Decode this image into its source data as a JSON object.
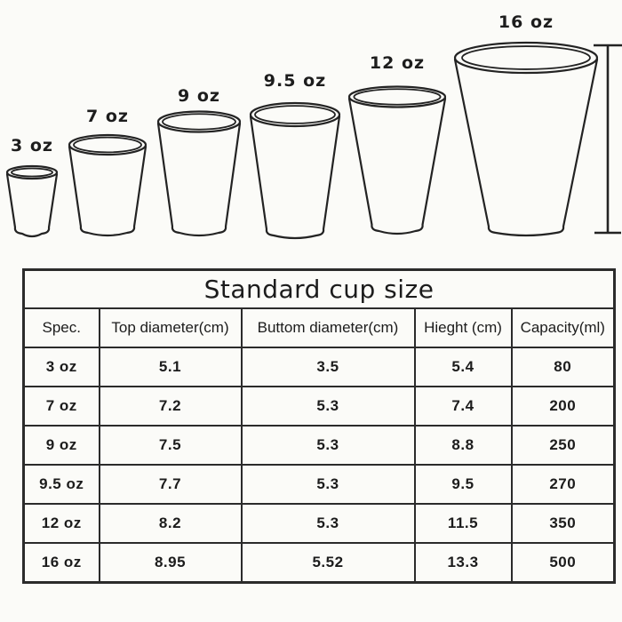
{
  "cups": [
    {
      "label": "3 oz"
    },
    {
      "label": "7 oz"
    },
    {
      "label": "9 oz"
    },
    {
      "label": "9.5 oz"
    },
    {
      "label": "12 oz"
    },
    {
      "label": "16 oz"
    }
  ],
  "table": {
    "title": "Standard cup size",
    "columns": [
      "Spec.",
      "Top diameter(cm)",
      "Buttom diameter(cm)",
      "Hieght (cm)",
      "Capacity(ml)"
    ],
    "rows": [
      [
        "3 oz",
        "5.1",
        "3.5",
        "5.4",
        "80"
      ],
      [
        "7 oz",
        "7.2",
        "5.3",
        "7.4",
        "200"
      ],
      [
        "9 oz",
        "7.5",
        "5.3",
        "8.8",
        "250"
      ],
      [
        "9.5 oz",
        "7.7",
        "5.3",
        "9.5",
        "270"
      ],
      [
        "12 oz",
        "8.2",
        "5.3",
        "11.5",
        "350"
      ],
      [
        "16 oz",
        "8.95",
        "5.52",
        "13.3",
        "500"
      ]
    ]
  },
  "colors": {
    "line": "#232323",
    "table_border": "#2b2b2b",
    "background": "#fbfbf8",
    "text": "#1c1c1c"
  }
}
